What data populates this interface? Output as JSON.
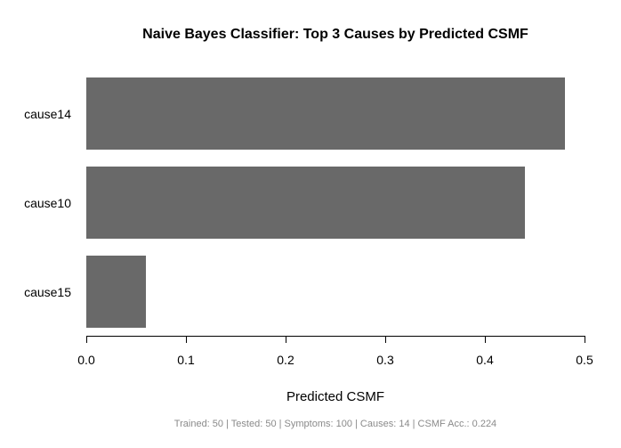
{
  "chart_data": {
    "type": "bar",
    "orientation": "horizontal",
    "title": "Naive Bayes Classifier: Top 3 Causes by Predicted CSMF",
    "categories": [
      "cause14",
      "cause10",
      "cause15"
    ],
    "values": [
      0.48,
      0.44,
      0.06
    ],
    "xlabel": "Predicted CSMF",
    "ylabel": "",
    "xlim": [
      0,
      0.5
    ],
    "xticks": [
      0.0,
      0.1,
      0.2,
      0.3,
      0.4,
      0.5
    ],
    "xtick_labels": [
      "0.0",
      "0.1",
      "0.2",
      "0.3",
      "0.4",
      "0.5"
    ],
    "grid": false,
    "legend": null,
    "bar_color": "#696969",
    "axis_color": "#000000",
    "text_color": "#000000"
  },
  "footer": {
    "text": "Trained: 50 | Tested: 50 | Symptoms: 100 | Causes: 14 | CSMF Acc.: 0.224",
    "color": "#8a8a8a"
  }
}
